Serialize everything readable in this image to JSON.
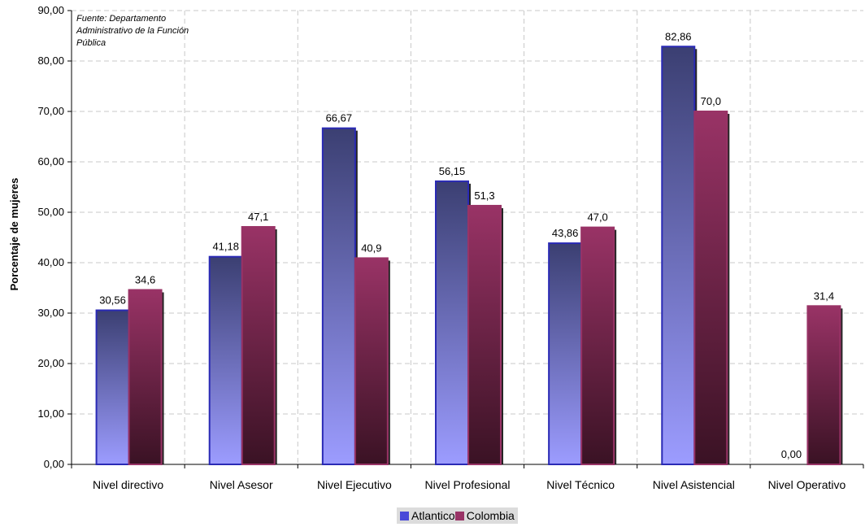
{
  "source_note": "Fuente: Departamento Administrativo de la Función Pública",
  "colors": {
    "atlantico_top": "#3b3f72",
    "atlantico_bottom": "#9c9cff",
    "atlantico_border": "#2a2ab5",
    "colombia_top": "#993366",
    "colombia_bottom": "#3a1224",
    "colombia_border": "#993366",
    "grid": "#c8c8c8"
  },
  "legend": {
    "items": [
      {
        "label": "Atlantico",
        "color": "#4848d8"
      },
      {
        "label": "Colombia",
        "color": "#993366"
      }
    ]
  },
  "chart_data": {
    "type": "bar",
    "title": "",
    "xlabel": "",
    "ylabel": "Porcentaje de mujeres",
    "ylim": [
      0,
      90
    ],
    "yticks": [
      "0,00",
      "10,00",
      "20,00",
      "30,00",
      "40,00",
      "50,00",
      "60,00",
      "70,00",
      "80,00",
      "90,00"
    ],
    "grid": true,
    "legend_position": "bottom",
    "categories": [
      "Nivel directivo",
      "Nivel Asesor",
      "Nivel Ejecutivo",
      "Nivel Profesional",
      "Nivel Técnico",
      "Nivel Asistencial",
      "Nivel Operativo"
    ],
    "series": [
      {
        "name": "Atlantico",
        "values": [
          30.56,
          41.18,
          66.67,
          56.15,
          43.86,
          82.86,
          0.0
        ],
        "labels": [
          "30,56",
          "41,18",
          "66,67",
          "56,15",
          "43,86",
          "82,86",
          "0,00"
        ]
      },
      {
        "name": "Colombia",
        "values": [
          34.6,
          47.1,
          40.9,
          51.3,
          47.0,
          70.0,
          31.4
        ],
        "labels": [
          "34,6",
          "47,1",
          "40,9",
          "51,3",
          "47,0",
          "70,0",
          "31,4"
        ]
      }
    ]
  }
}
